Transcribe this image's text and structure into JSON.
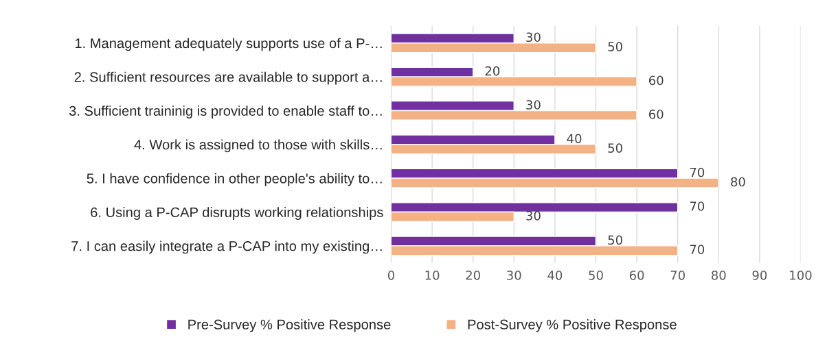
{
  "chart_data": {
    "type": "bar",
    "orientation": "horizontal",
    "categories": [
      "1. Management adequately supports use of a P-…",
      "2. Sufficient resources are available to support a…",
      "3. Sufficient traininig is provided to enable staff to…",
      "4. Work is assigned to those with skills…",
      "5. I have confidence in other people's ability to…",
      "6. Using a P-CAP disrupts working relationships",
      "7. I can easily integrate a P-CAP into my existing…"
    ],
    "series": [
      {
        "name": "Pre-Survey % Positive Response",
        "color": "#7030a0",
        "values": [
          30,
          20,
          30,
          40,
          70,
          70,
          50
        ]
      },
      {
        "name": "Post-Survey % Positive Response",
        "color": "#f4b183",
        "values": [
          50,
          60,
          60,
          50,
          80,
          30,
          70
        ]
      }
    ],
    "xlim": [
      0,
      100
    ],
    "xticks": [
      0,
      10,
      20,
      30,
      40,
      50,
      60,
      70,
      80,
      90,
      100
    ],
    "grid": "x",
    "legend": "bottom",
    "data_labels": true
  }
}
